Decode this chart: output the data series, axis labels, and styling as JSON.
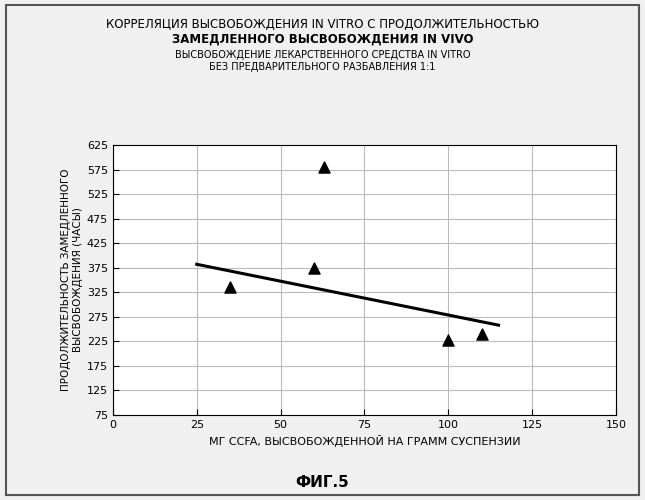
{
  "title_line1": "КОРРЕЛЯЦИЯ ВЫСВОБОЖДЕНИЯ IN VITRO С ПРОДОЛЖИТЕЛЬНОСТЬЮ",
  "title_line2": "ЗАМЕДЛЕННОГО ВЫСВОБОЖДЕНИЯ IN VIVO",
  "subtitle_line1": "ВЫСВОБОЖДЕНИЕ ЛЕКАРСТВЕННОГО СРЕДСТВА IN VITRO",
  "subtitle_line2": "БЕЗ ПРЕДВАРИТЕЛЬНОГО РАЗБАВЛЕНИЯ 1:1",
  "xlabel": "МГ CCFA, ВЫСВОБОЖДЕННОЙ НА ГРАММ СУСПЕНЗИИ",
  "ylabel": "ПРОДОЛЖИТЕЛЬНОСТЬ ЗАМЕДЛЕННОГО\nВЫСВОБОЖДЕНИЯ (ЧАСЫ)",
  "fig_label": "ФИГ.5",
  "scatter_x": [
    35,
    60,
    63,
    100,
    110
  ],
  "scatter_y": [
    335,
    375,
    580,
    228,
    240
  ],
  "trendline_x": [
    25,
    115
  ],
  "trendline_y": [
    382,
    258
  ],
  "xlim": [
    0,
    150
  ],
  "ylim": [
    75,
    625
  ],
  "xticks": [
    0,
    25,
    50,
    75,
    100,
    125,
    150
  ],
  "yticks": [
    75,
    125,
    175,
    225,
    275,
    325,
    375,
    425,
    475,
    525,
    575,
    625
  ],
  "marker": "^",
  "marker_color": "#000000",
  "marker_size": 8,
  "line_color": "#000000",
  "line_width": 2.2,
  "grid_color": "#bbbbbb",
  "background_color": "#f0f0f0",
  "plot_bg_color": "#ffffff",
  "title_fontsize": 8.5,
  "subtitle_fontsize": 7.0,
  "axis_label_fontsize": 8,
  "tick_fontsize": 8,
  "fig_label_fontsize": 11,
  "ylabel_fontsize": 7.5
}
